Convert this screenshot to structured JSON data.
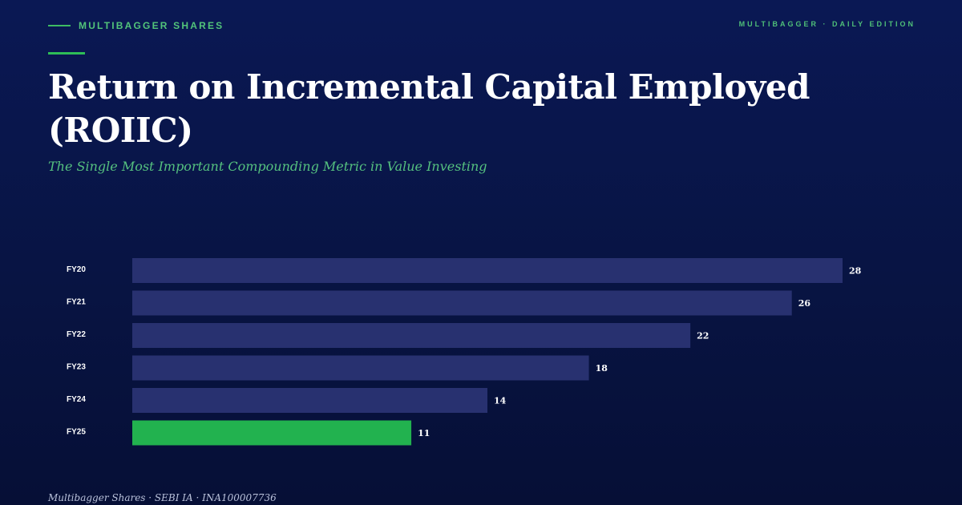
{
  "header": {
    "brand": "MULTIBAGGER SHARES",
    "edition": "MULTIBAGGER · DAILY EDITION"
  },
  "title": "Return on Incremental Capital Employed (ROIIC)",
  "subtitle": "The Single Most Important Compounding Metric in Value Investing",
  "footer": "Multibagger Shares · SEBI IA · INA100007736",
  "colors": {
    "background": "#0a1854",
    "accent": "#2ebd57",
    "bar": "#283170",
    "bar_highlight": "#22b24f"
  },
  "chart_data": {
    "type": "bar",
    "orientation": "horizontal",
    "categories": [
      "FY20",
      "FY21",
      "FY22",
      "FY23",
      "FY24",
      "FY25"
    ],
    "values": [
      28,
      26,
      22,
      18,
      14,
      11
    ],
    "data_labels": [
      "28",
      "26",
      "22",
      "18",
      "14",
      "11"
    ],
    "highlight_category": "FY25",
    "xlim": [
      0,
      28
    ],
    "grid": false,
    "legend": "none"
  }
}
